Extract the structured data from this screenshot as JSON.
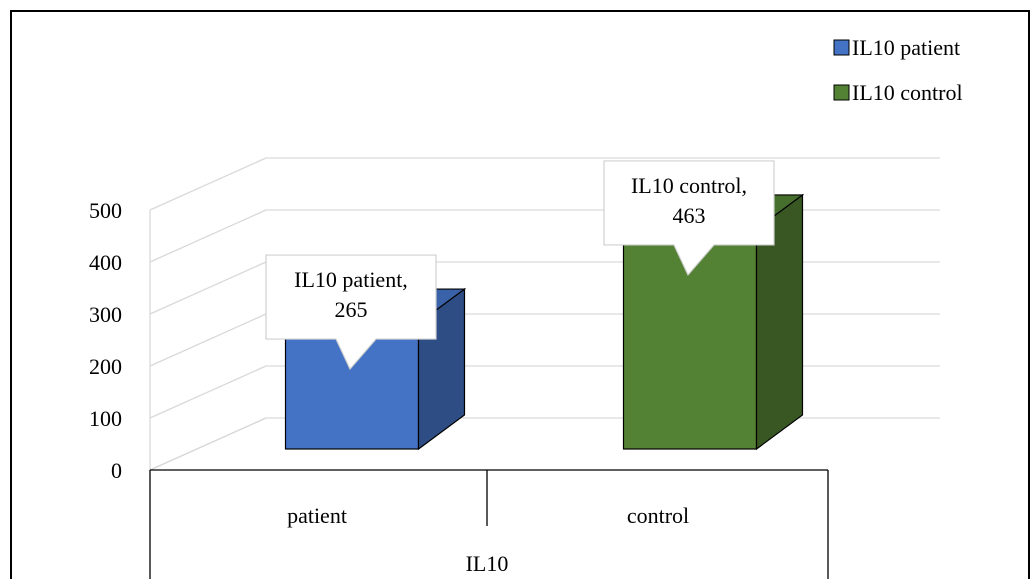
{
  "chart_data": {
    "type": "bar",
    "variant": "3d-column",
    "title": "",
    "xlabel": "",
    "ylabel": "",
    "ylim": [
      0,
      500
    ],
    "yticks": [
      0,
      100,
      200,
      300,
      400,
      500
    ],
    "grid": true,
    "legend_position": "top-right",
    "group_label": "IL10",
    "categories": [
      "patient",
      "control"
    ],
    "series": [
      {
        "name": "IL10 patient",
        "category": "patient",
        "value": 265,
        "color": "#4472C4",
        "side_color": "#2E4D85",
        "top_color": "#3A62A8",
        "data_label": [
          "IL10 patient,",
          "265"
        ]
      },
      {
        "name": "IL10 control",
        "category": "control",
        "value": 463,
        "color": "#548235",
        "side_color": "#385723",
        "top_color": "#466E2C",
        "data_label": [
          "IL10 control,",
          "463"
        ]
      }
    ]
  }
}
